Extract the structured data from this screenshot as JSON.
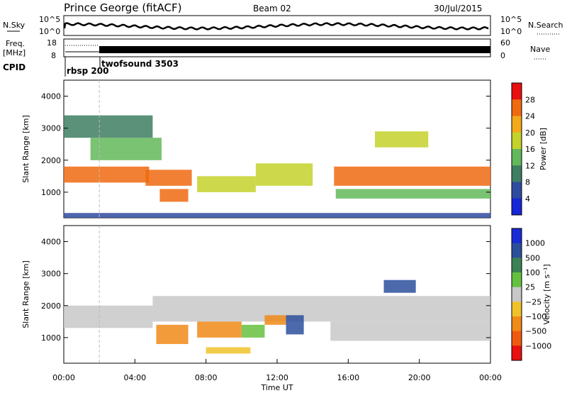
{
  "header": {
    "station": "Prince George (fitACF)",
    "beam": "Beam 02",
    "date": "30/Jul/2015"
  },
  "top_panel": {
    "left_label": "N.Sky",
    "right_label": "N.Search",
    "left_ticks": [
      "10^5",
      "10^0"
    ],
    "right_ticks": [
      "10^5",
      "10^0"
    ]
  },
  "freq_panel": {
    "left_label_1": "Freq.",
    "left_label_2": "[MHz]",
    "right_label": "Nave",
    "left_ticks": [
      "18",
      "8"
    ],
    "right_ticks": [
      "60",
      "0"
    ]
  },
  "cpid": {
    "label": "CPID",
    "programs": [
      {
        "name": "rbsp 200",
        "start_hour": 0.0
      },
      {
        "name": "twofsound 3503",
        "start_hour": 2.0
      }
    ]
  },
  "chart_data": [
    {
      "type": "heatmap",
      "name": "power",
      "ylabel": "Slant Range [km]",
      "xlabel": "",
      "xlim": [
        0,
        24
      ],
      "ylim": [
        200,
        4500
      ],
      "yticks": [
        "1000",
        "2000",
        "3000",
        "4000"
      ],
      "colorbar_label": "Power [dB]",
      "colorbar_ticks": [
        "4",
        "8",
        "12",
        "16",
        "20",
        "24",
        "28"
      ],
      "colorbar_colors": [
        "#1726d6",
        "#2f4aa0",
        "#3e7e62",
        "#62b85a",
        "#c4d22c",
        "#f4a81a",
        "#f06a10",
        "#e81010"
      ],
      "regions": [
        {
          "x0": 0.0,
          "x1": 4.8,
          "y0": 1300,
          "y1": 1800,
          "level": 26
        },
        {
          "x0": 4.6,
          "x1": 7.2,
          "y0": 1200,
          "y1": 1700,
          "level": 24
        },
        {
          "x0": 5.4,
          "x1": 7.0,
          "y0": 700,
          "y1": 1100,
          "level": 27
        },
        {
          "x0": 7.5,
          "x1": 10.8,
          "y0": 1000,
          "y1": 1500,
          "level": 18
        },
        {
          "x0": 10.8,
          "x1": 14.0,
          "y0": 1200,
          "y1": 1900,
          "level": 16
        },
        {
          "x0": 15.2,
          "x1": 24.0,
          "y0": 1200,
          "y1": 1800,
          "level": 24
        },
        {
          "x0": 1.5,
          "x1": 5.5,
          "y0": 2000,
          "y1": 2700,
          "level": 14
        },
        {
          "x0": 17.5,
          "x1": 20.5,
          "y0": 2400,
          "y1": 2900,
          "level": 17
        },
        {
          "x0": 0.0,
          "x1": 5.0,
          "y0": 2700,
          "y1": 3400,
          "level": 8
        },
        {
          "x0": 15.3,
          "x1": 24.0,
          "y0": 800,
          "y1": 1100,
          "level": 12
        },
        {
          "x0": 0.0,
          "x1": 24.0,
          "y0": 200,
          "y1": 350,
          "level": 6
        }
      ]
    },
    {
      "type": "heatmap",
      "name": "velocity",
      "ylabel": "Slant Range [km]",
      "xlabel": "Time UT",
      "xlim": [
        0,
        24
      ],
      "ylim": [
        200,
        4500
      ],
      "xticks": [
        "00:00",
        "04:00",
        "08:00",
        "12:00",
        "16:00",
        "20:00",
        "00:00"
      ],
      "yticks": [
        "1000",
        "2000",
        "3000",
        "4000"
      ],
      "colorbar_label": "Velocity [m s⁻¹]",
      "colorbar_ticks": [
        "1000",
        "500",
        "100",
        "25",
        "−25",
        "−100",
        "−500",
        "−1000"
      ],
      "colorbar_colors": [
        "#1a2ad6",
        "#2c4f9c",
        "#3a8255",
        "#66c040",
        "#c8c8c8",
        "#f0c22a",
        "#f08a18",
        "#f05a10",
        "#e81010"
      ],
      "regions": [
        {
          "x0": 0.0,
          "x1": 5.0,
          "y0": 1300,
          "y1": 2000,
          "level": 0
        },
        {
          "x0": 5.0,
          "x1": 24.0,
          "y0": 1500,
          "y1": 2300,
          "level": 0
        },
        {
          "x0": 15.0,
          "x1": 24.0,
          "y0": 900,
          "y1": 1500,
          "level": 0
        },
        {
          "x0": 5.2,
          "x1": 7.0,
          "y0": 800,
          "y1": 1400,
          "level": -300
        },
        {
          "x0": 7.5,
          "x1": 10.0,
          "y0": 1000,
          "y1": 1500,
          "level": -150
        },
        {
          "x0": 10.0,
          "x1": 11.3,
          "y0": 1000,
          "y1": 1400,
          "level": 80
        },
        {
          "x0": 11.3,
          "x1": 12.5,
          "y0": 1400,
          "y1": 1700,
          "level": -120
        },
        {
          "x0": 12.5,
          "x1": 13.5,
          "y0": 1100,
          "y1": 1700,
          "level": 600
        },
        {
          "x0": 18.0,
          "x1": 19.8,
          "y0": 2400,
          "y1": 2800,
          "level": 800
        },
        {
          "x0": 8.0,
          "x1": 10.5,
          "y0": 500,
          "y1": 700,
          "level": -50
        }
      ]
    }
  ]
}
